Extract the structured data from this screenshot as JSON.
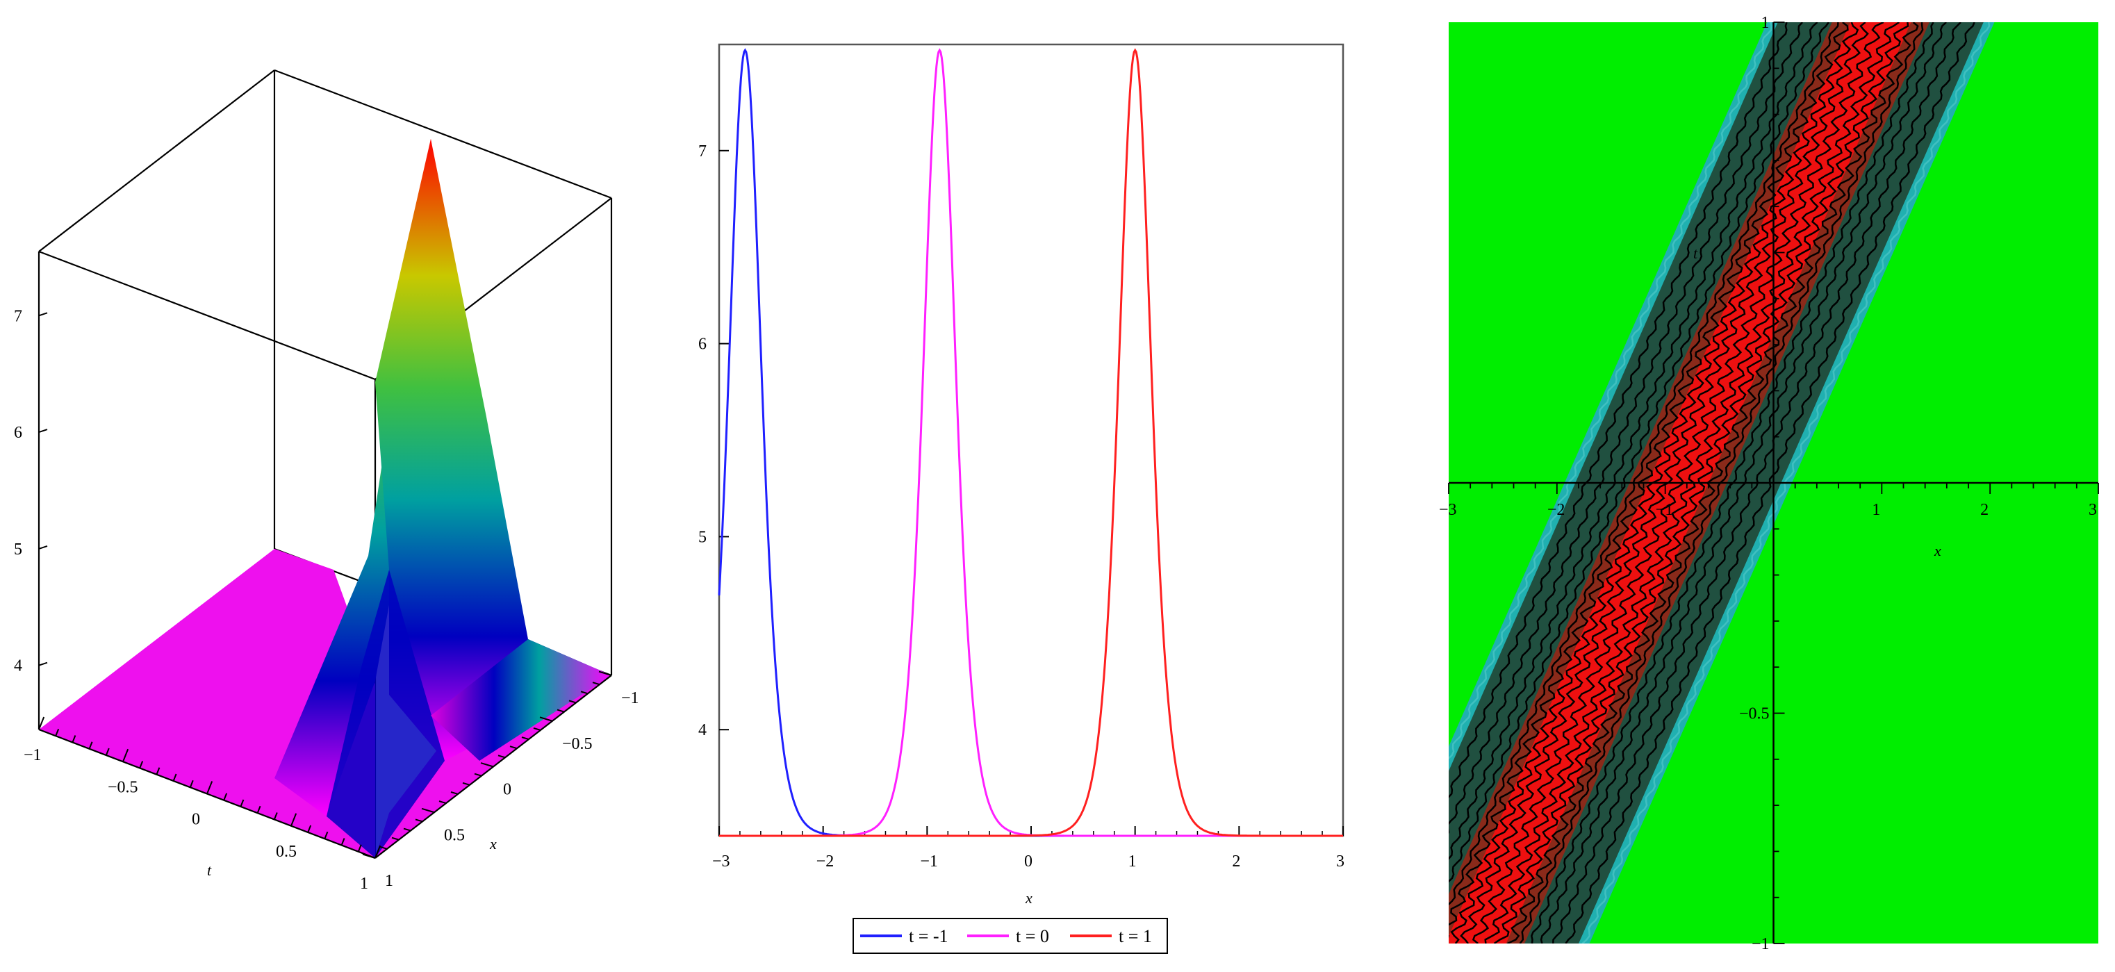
{
  "chart_data": [
    {
      "type": "surface3d",
      "title": "",
      "axes": {
        "x": {
          "label": "x",
          "ticks": [
            "-1",
            "-0.5",
            "0",
            "0.5",
            "1"
          ]
        },
        "t": {
          "label": "t",
          "ticks": [
            "-1",
            "-0.5",
            "0",
            "0.5",
            "1"
          ]
        },
        "z": {
          "ticks": [
            "4",
            "5",
            "6",
            "7"
          ],
          "zlim": [
            3.45,
            7.55
          ]
        }
      },
      "colormap": [
        "#ff00ff",
        "#0000c0",
        "#00a0a0",
        "#40c040",
        "#c8c800",
        "#ff0000"
      ]
    },
    {
      "type": "line",
      "xlabel": "x",
      "xlim": [
        -3,
        3
      ],
      "ylim": [
        3.45,
        7.55
      ],
      "x_ticks": [
        "-3",
        "-2",
        "-1",
        "0",
        "1",
        "2",
        "3"
      ],
      "y_ticks": [
        "4",
        "5",
        "6",
        "7"
      ],
      "baseline": 3.45,
      "peak": 7.52,
      "width": 0.24,
      "series": [
        {
          "name": "t = -1",
          "center": -2.75,
          "color": "#2020ff"
        },
        {
          "name": "t = 0",
          "center": -0.88,
          "color": "#ff20ff"
        },
        {
          "name": "t = 1",
          "center": 1.0,
          "color": "#ff2020"
        }
      ],
      "legend": "bottom"
    },
    {
      "type": "contour",
      "xlabel": "x",
      "ylabel": "t",
      "xlim": [
        -3,
        3
      ],
      "ylim": [
        -1,
        1
      ],
      "x_ticks": [
        "-3",
        "-2",
        "-1",
        "1",
        "2",
        "3"
      ],
      "y_ticks": [
        "-1",
        "-0.5",
        "1"
      ],
      "ridge": {
        "x_at_t0": -0.88,
        "slope_dx_dt": 1.87
      },
      "colors": {
        "background": "#00ee00",
        "ridge": "#ee1010",
        "cyan": "#20b0b0",
        "band": "#205040",
        "lines": "#000000"
      }
    }
  ]
}
